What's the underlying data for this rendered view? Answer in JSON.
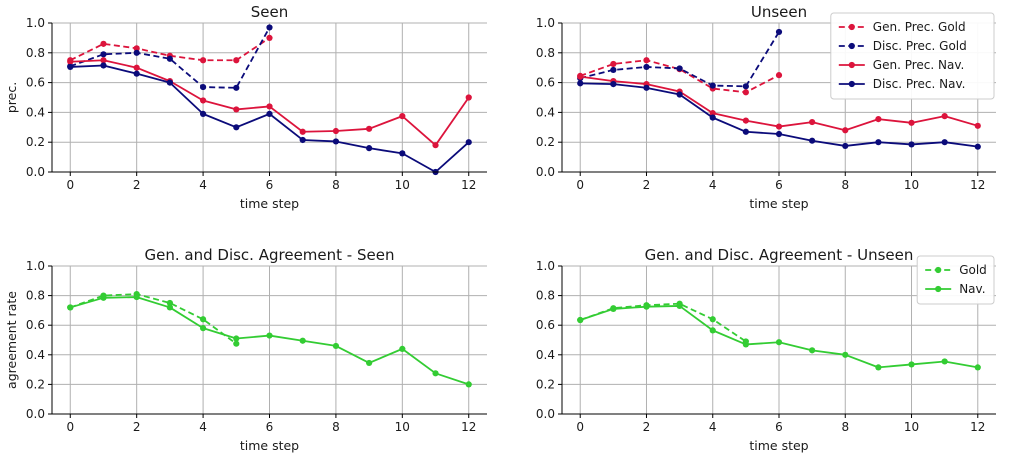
{
  "colors": {
    "gen": "#dc143c",
    "disc": "#0b0b7a",
    "agree": "#33cc33",
    "grid": "#b0b0b0",
    "axis": "#000000"
  },
  "chart_data": [
    {
      "type": "line",
      "title": "Seen",
      "xlabel": "time step",
      "ylabel": "prec.",
      "xlim": [
        -0.55,
        12.55
      ],
      "ylim": [
        0,
        1
      ],
      "xticks": [
        0,
        2,
        4,
        6,
        8,
        10,
        12
      ],
      "yticks": [
        0.0,
        0.2,
        0.4,
        0.6,
        0.8,
        1.0
      ],
      "grid": true,
      "legend": null,
      "series": [
        {
          "name": "Gen. Prec. Gold",
          "color": "gen",
          "dashed": true,
          "x": [
            0,
            1,
            2,
            3,
            4,
            5,
            6
          ],
          "y": [
            0.75,
            0.86,
            0.83,
            0.78,
            0.75,
            0.75,
            0.9
          ]
        },
        {
          "name": "Disc. Prec. Gold",
          "color": "disc",
          "dashed": true,
          "x": [
            0,
            1,
            2,
            3,
            4,
            5,
            6
          ],
          "y": [
            0.71,
            0.79,
            0.8,
            0.76,
            0.57,
            0.565,
            0.97
          ]
        },
        {
          "name": "Gen. Prec. Nav.",
          "color": "gen",
          "dashed": false,
          "x": [
            0,
            1,
            2,
            3,
            4,
            5,
            6,
            7,
            8,
            9,
            10,
            11,
            12
          ],
          "y": [
            0.74,
            0.75,
            0.7,
            0.61,
            0.48,
            0.42,
            0.44,
            0.27,
            0.275,
            0.29,
            0.375,
            0.18,
            0.5
          ]
        },
        {
          "name": "Disc. Prec. Nav.",
          "color": "disc",
          "dashed": false,
          "x": [
            0,
            1,
            2,
            3,
            4,
            5,
            6,
            7,
            8,
            9,
            10,
            11,
            12
          ],
          "y": [
            0.705,
            0.715,
            0.66,
            0.6,
            0.39,
            0.3,
            0.39,
            0.215,
            0.205,
            0.16,
            0.125,
            0.0,
            0.2
          ]
        }
      ]
    },
    {
      "type": "line",
      "title": "Unseen",
      "xlabel": "time step",
      "ylabel": "",
      "xlim": [
        -0.55,
        12.55
      ],
      "ylim": [
        0,
        1
      ],
      "xticks": [
        0,
        2,
        4,
        6,
        8,
        10,
        12
      ],
      "yticks": [
        0.0,
        0.2,
        0.4,
        0.6,
        0.8,
        1.0
      ],
      "grid": true,
      "legend": "top-right",
      "series": [
        {
          "name": "Gen. Prec. Gold",
          "color": "gen",
          "dashed": true,
          "x": [
            0,
            1,
            2,
            3,
            4,
            5,
            6
          ],
          "y": [
            0.645,
            0.725,
            0.75,
            0.69,
            0.56,
            0.535,
            0.65
          ]
        },
        {
          "name": "Disc. Prec. Gold",
          "color": "disc",
          "dashed": true,
          "x": [
            0,
            1,
            2,
            3,
            4,
            5,
            6
          ],
          "y": [
            0.63,
            0.685,
            0.705,
            0.695,
            0.58,
            0.575,
            0.94
          ]
        },
        {
          "name": "Gen. Prec. Nav.",
          "color": "gen",
          "dashed": false,
          "x": [
            0,
            1,
            2,
            3,
            4,
            5,
            6,
            7,
            8,
            9,
            10,
            11,
            12
          ],
          "y": [
            0.64,
            0.61,
            0.59,
            0.54,
            0.395,
            0.345,
            0.305,
            0.335,
            0.28,
            0.355,
            0.33,
            0.375,
            0.31
          ]
        },
        {
          "name": "Disc. Prec. Nav.",
          "color": "disc",
          "dashed": false,
          "x": [
            0,
            1,
            2,
            3,
            4,
            5,
            6,
            7,
            8,
            9,
            10,
            11,
            12
          ],
          "y": [
            0.595,
            0.59,
            0.565,
            0.52,
            0.365,
            0.27,
            0.255,
            0.21,
            0.175,
            0.2,
            0.185,
            0.2,
            0.17
          ]
        }
      ]
    },
    {
      "type": "line",
      "title": "Gen. and Disc. Agreement - Seen",
      "xlabel": "time step",
      "ylabel": "agreement rate",
      "xlim": [
        -0.55,
        12.55
      ],
      "ylim": [
        0,
        1
      ],
      "xticks": [
        0,
        2,
        4,
        6,
        8,
        10,
        12
      ],
      "yticks": [
        0.0,
        0.2,
        0.4,
        0.6,
        0.8,
        1.0
      ],
      "grid": true,
      "legend": null,
      "series": [
        {
          "name": "Gold",
          "color": "agree",
          "dashed": true,
          "x": [
            0,
            1,
            2,
            3,
            4,
            5
          ],
          "y": [
            0.72,
            0.8,
            0.81,
            0.75,
            0.64,
            0.475
          ]
        },
        {
          "name": "Nav.",
          "color": "agree",
          "dashed": false,
          "x": [
            0,
            1,
            2,
            3,
            4,
            5,
            6,
            7,
            8,
            9,
            10,
            11,
            12
          ],
          "y": [
            0.72,
            0.785,
            0.79,
            0.72,
            0.58,
            0.51,
            0.53,
            0.495,
            0.46,
            0.345,
            0.44,
            0.275,
            0.2
          ]
        }
      ]
    },
    {
      "type": "line",
      "title": "Gen. and Disc. Agreement - Unseen",
      "xlabel": "time step",
      "ylabel": "",
      "xlim": [
        -0.55,
        12.55
      ],
      "ylim": [
        0,
        1
      ],
      "xticks": [
        0,
        2,
        4,
        6,
        8,
        10,
        12
      ],
      "yticks": [
        0.0,
        0.2,
        0.4,
        0.6,
        0.8,
        1.0
      ],
      "grid": true,
      "legend": "top-right",
      "series": [
        {
          "name": "Gold",
          "color": "agree",
          "dashed": true,
          "x": [
            0,
            1,
            2,
            3,
            4,
            5
          ],
          "y": [
            0.635,
            0.715,
            0.735,
            0.745,
            0.64,
            0.49
          ]
        },
        {
          "name": "Nav.",
          "color": "agree",
          "dashed": false,
          "x": [
            0,
            1,
            2,
            3,
            4,
            5,
            6,
            7,
            8,
            9,
            10,
            11,
            12
          ],
          "y": [
            0.635,
            0.71,
            0.725,
            0.73,
            0.565,
            0.47,
            0.485,
            0.43,
            0.4,
            0.315,
            0.335,
            0.355,
            0.315
          ]
        }
      ]
    }
  ]
}
